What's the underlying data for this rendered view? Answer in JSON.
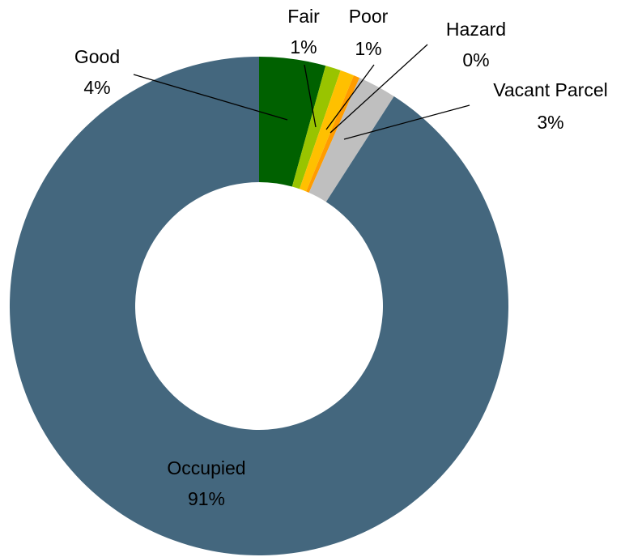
{
  "chart_data": {
    "type": "donut",
    "categories": [
      "Good",
      "Fair",
      "Poor",
      "Hazard",
      "Vacant Parcel",
      "Occupied"
    ],
    "values": [
      4.3,
      1.0,
      0.9,
      0.4,
      2.5,
      90.9
    ],
    "value_labels": [
      "4%",
      "1%",
      "1%",
      "0%",
      "3%",
      "91%"
    ],
    "colors": [
      "#006100",
      "#99c400",
      "#ffc000",
      "#ff9c00",
      "#bfbfbf",
      "#44677e"
    ]
  }
}
